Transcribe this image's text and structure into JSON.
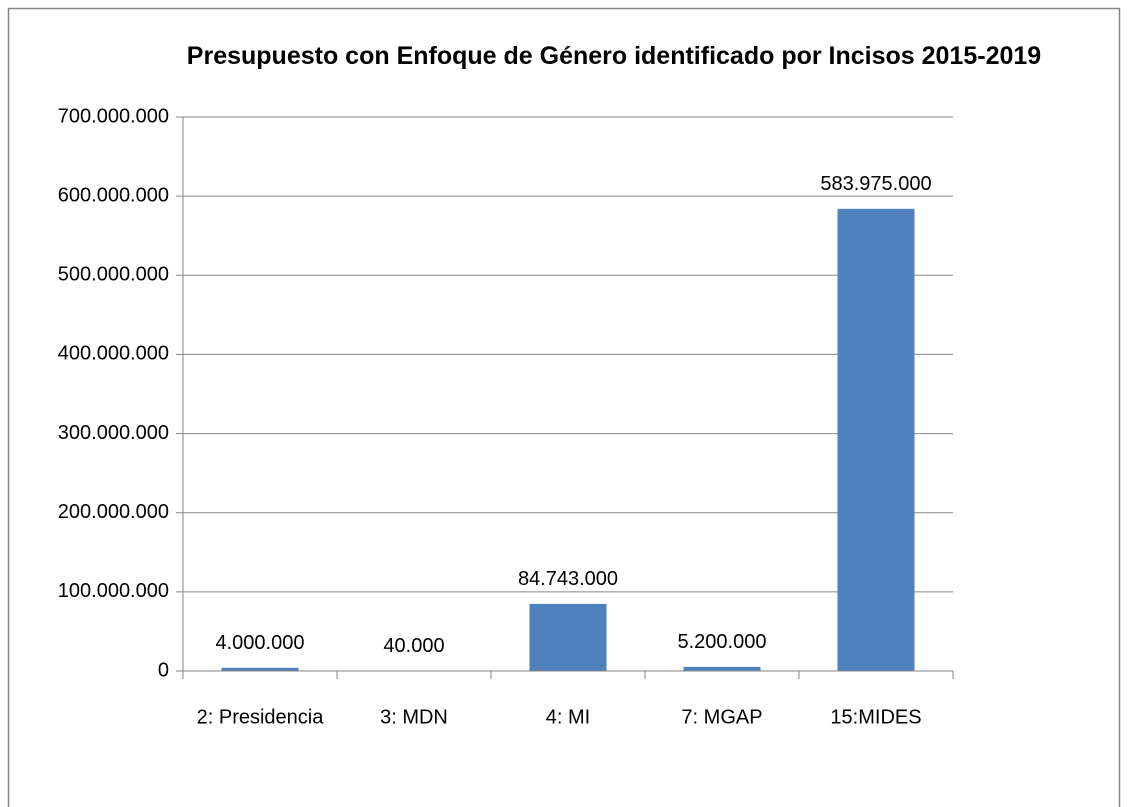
{
  "chart_data": {
    "type": "bar",
    "title": "Presupuesto con Enfoque de Género identificado por Incisos 2015-2019",
    "categories": [
      "2: Presidencia",
      "3: MDN",
      "4: MI",
      "7: MGAP",
      "15:MIDES"
    ],
    "values": [
      4000000,
      40000,
      84743000,
      5200000,
      583975000
    ],
    "value_labels": [
      "4.000.000",
      "40.000",
      "84.743.000",
      "5.200.000",
      "583.975.000"
    ],
    "color": "#4f81bd",
    "ylim": [
      0,
      700000000
    ],
    "yticks": [
      0,
      {
        "value": 100000000,
        "label": "100.000.000"
      },
      {
        "value": 200000000,
        "label": "200.000.000"
      },
      {
        "value": 300000000,
        "label": "300.000.000"
      },
      {
        "value": 400000000,
        "label": "400.000.000"
      },
      {
        "value": 500000000,
        "label": "500.000.000"
      },
      {
        "value": 600000000,
        "label": "600.000.000"
      },
      {
        "value": 700000000,
        "label": "700.000.000"
      }
    ],
    "grid": true
  }
}
